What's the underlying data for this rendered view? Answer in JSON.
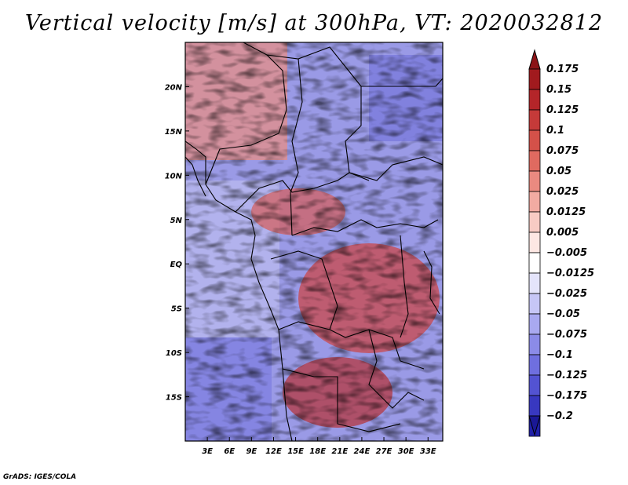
{
  "title": "Vertical velocity [m/s] at 300hPa, VT: 2020032812",
  "credit": "GrADS: IGES/COLA",
  "map": {
    "lon_range": [
      0,
      35
    ],
    "lat_range": [
      -20,
      25
    ],
    "lon_ticks": [
      {
        "value": 3,
        "label": "3E"
      },
      {
        "value": 6,
        "label": "6E"
      },
      {
        "value": 9,
        "label": "9E"
      },
      {
        "value": 12,
        "label": "12E"
      },
      {
        "value": 15,
        "label": "15E"
      },
      {
        "value": 18,
        "label": "18E"
      },
      {
        "value": 21,
        "label": "21E"
      },
      {
        "value": 24,
        "label": "24E"
      },
      {
        "value": 27,
        "label": "27E"
      },
      {
        "value": 30,
        "label": "30E"
      },
      {
        "value": 33,
        "label": "33E"
      }
    ],
    "lat_ticks": [
      {
        "value": 20,
        "label": "20N"
      },
      {
        "value": 15,
        "label": "15N"
      },
      {
        "value": 10,
        "label": "10N"
      },
      {
        "value": 5,
        "label": "5N"
      },
      {
        "value": 0,
        "label": "EQ"
      },
      {
        "value": -5,
        "label": "5S"
      },
      {
        "value": -10,
        "label": "10S"
      },
      {
        "value": -15,
        "label": "15S"
      }
    ]
  },
  "colorbar": {
    "levels": [
      {
        "label": "0.175",
        "color": "#a11a1e"
      },
      {
        "label": "0.15",
        "color": "#b42529"
      },
      {
        "label": "0.125",
        "color": "#c53a39"
      },
      {
        "label": "0.1",
        "color": "#d45149"
      },
      {
        "label": "0.075",
        "color": "#e06a60"
      },
      {
        "label": "0.05",
        "color": "#ea8a80"
      },
      {
        "label": "0.025",
        "color": "#f2aba2"
      },
      {
        "label": "0.0125",
        "color": "#f8cbc4"
      },
      {
        "label": "0.005",
        "color": "#fde7e3"
      },
      {
        "label": "−0.005",
        "color": "#ffffff"
      },
      {
        "label": "−0.0125",
        "color": "#e4e4fb"
      },
      {
        "label": "−0.025",
        "color": "#c6c6f6"
      },
      {
        "label": "−0.05",
        "color": "#a9a9f0"
      },
      {
        "label": "−0.075",
        "color": "#8b8be8"
      },
      {
        "label": "−0.1",
        "color": "#6f6fdf"
      },
      {
        "label": "−0.125",
        "color": "#5353d2"
      },
      {
        "label": "−0.175",
        "color": "#3838c0"
      },
      {
        "label": "−0.2",
        "color": "#2020a8"
      }
    ],
    "top_color": "#8c1317",
    "bottom_color": "#1a1896"
  }
}
